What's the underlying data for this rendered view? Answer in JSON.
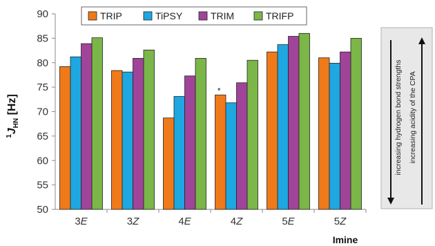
{
  "chart_data": {
    "type": "bar",
    "categories": [
      {
        "num": "3",
        "iso": "E"
      },
      {
        "num": "3",
        "iso": "Z"
      },
      {
        "num": "4",
        "iso": "E"
      },
      {
        "num": "4",
        "iso": "Z"
      },
      {
        "num": "5",
        "iso": "E"
      },
      {
        "num": "5",
        "iso": "Z"
      }
    ],
    "series": [
      {
        "name": "TRIP",
        "color": "#f07a1a",
        "values": [
          79.2,
          78.4,
          68.7,
          73.4,
          82.2,
          81.0
        ]
      },
      {
        "name": "TiPSY",
        "color": "#1ea7e1",
        "values": [
          81.2,
          78.1,
          73.1,
          71.8,
          83.7,
          79.9
        ]
      },
      {
        "name": "TRIM",
        "color": "#a0449a",
        "values": [
          83.9,
          80.9,
          77.3,
          75.9,
          85.4,
          82.2
        ]
      },
      {
        "name": "TRIFP",
        "color": "#7ab648",
        "values": [
          85.1,
          82.6,
          80.9,
          80.5,
          86.0,
          85.0
        ]
      }
    ],
    "ylabel": {
      "sup": "1",
      "main": "J",
      "sub": "HN",
      "unit": " [Hz]"
    },
    "xlabel": "Imine",
    "ylim": [
      50,
      90
    ],
    "yticks": [
      50,
      55,
      60,
      65,
      70,
      75,
      80,
      85,
      90
    ],
    "grid": false,
    "legend_position": "top",
    "annotation": {
      "text": "*",
      "category_index": 3,
      "series_index": 0
    },
    "side_panel": {
      "left_text": "increasing hydrogen bond strengths",
      "right_text": "increasing acidity of the CPA"
    }
  }
}
